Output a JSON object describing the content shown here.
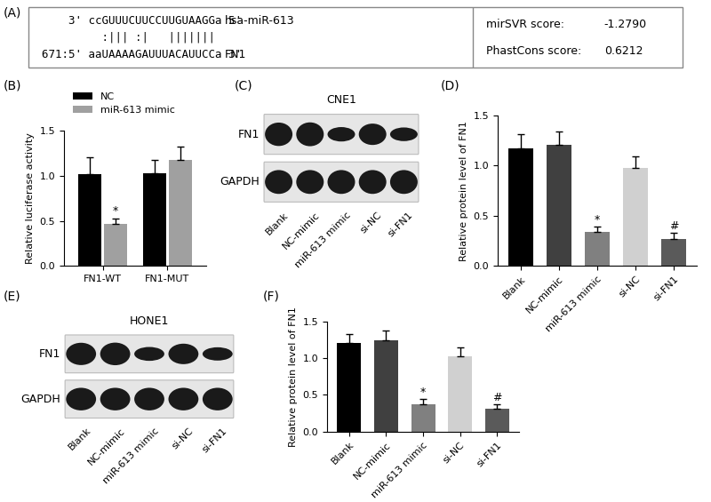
{
  "alignment": {
    "panel": "(A)",
    "mirna_line": "    3' ccGUUUCUUCCUUGUAAGGa 5'",
    "mirna_name": "hsa-miR-613",
    "pairing_line": "         :||| :|   |||||||",
    "target_line": "671:5' aaUAAAAGAUUUACAUUCCa 3'",
    "target_name": "FN1",
    "scores": [
      {
        "label": "mirSVR score:",
        "value": "-1.2790"
      },
      {
        "label": "PhastCons score:",
        "value": "0.6212"
      }
    ]
  },
  "chart_data": [
    {
      "type": "bar",
      "panel": "(B)",
      "categories": [
        "FN1-WT",
        "FN1-MUT"
      ],
      "series": [
        {
          "name": "NC",
          "color": "#000000",
          "values": [
            1.02,
            1.03
          ],
          "errors": [
            0.18,
            0.14
          ]
        },
        {
          "name": "miR-613 mimic",
          "color": "#a0a0a0",
          "values": [
            0.47,
            1.17
          ],
          "errors": [
            0.06,
            0.15
          ]
        }
      ],
      "y_label": "Relative luciferase activity",
      "ylim": [
        0,
        1.5
      ],
      "yticks": [
        {
          "value": 0,
          "label": "0.0"
        },
        {
          "value": 0.5,
          "label": "0.5"
        },
        {
          "value": 1.0,
          "label": "1.0"
        },
        {
          "value": 1.5,
          "label": "1.5"
        }
      ],
      "legend": "upper left",
      "annotations": [
        {
          "text": "*",
          "category": 0,
          "series": 1
        }
      ]
    },
    {
      "type": "bar",
      "panel": "(D)",
      "categories": [
        "Blank",
        "NC-mimic",
        "miR-613 mimic",
        "si-NC",
        "si-FN1"
      ],
      "values": [
        1.17,
        1.21,
        0.34,
        0.98,
        0.27
      ],
      "errors": [
        0.14,
        0.13,
        0.05,
        0.11,
        0.06
      ],
      "colors": [
        "#000000",
        "#404040",
        "#808080",
        "#d0d0d0",
        "#5a5a5a"
      ],
      "y_label": "Relative protein level of FN1",
      "ylim": [
        0,
        1.5
      ],
      "yticks": [
        {
          "value": 0,
          "label": "0.0"
        },
        {
          "value": 0.5,
          "label": "0.5"
        },
        {
          "value": 1.0,
          "label": "1.0"
        },
        {
          "value": 1.5,
          "label": "1.5"
        }
      ],
      "annotations": [
        {
          "text": "*",
          "category": 2
        },
        {
          "text": "#",
          "category": 4
        }
      ]
    },
    {
      "type": "bar",
      "panel": "(F)",
      "categories": [
        "Blank",
        "NC-mimic",
        "miR-613 mimic",
        "si-NC",
        "si-FN1"
      ],
      "values": [
        1.21,
        1.24,
        0.37,
        1.03,
        0.31
      ],
      "errors": [
        0.12,
        0.13,
        0.07,
        0.11,
        0.06
      ],
      "colors": [
        "#000000",
        "#404040",
        "#808080",
        "#d0d0d0",
        "#5a5a5a"
      ],
      "y_label": "Relative protein level of FN1",
      "ylim": [
        0,
        1.5
      ],
      "yticks": [
        {
          "value": 0,
          "label": "0.0"
        },
        {
          "value": 0.5,
          "label": "0.5"
        },
        {
          "value": 1.0,
          "label": "1.0"
        },
        {
          "value": 1.5,
          "label": "1.5"
        }
      ],
      "annotations": [
        {
          "text": "*",
          "category": 2
        },
        {
          "text": "#",
          "category": 4
        }
      ]
    }
  ],
  "blots": [
    {
      "panel": "(C)",
      "title": "CNE1",
      "rows": [
        "FN1",
        "GAPDH"
      ],
      "lanes": [
        "Blank",
        "NC-mimic",
        "miR-613 mimic",
        "si-NC",
        "si-FN1"
      ]
    },
    {
      "panel": "(E)",
      "title": "HONE1",
      "rows": [
        "FN1",
        "GAPDH"
      ],
      "lanes": [
        "Blank",
        "NC-mimic",
        "miR-613 mimic",
        "si-NC",
        "si-FN1"
      ]
    }
  ]
}
